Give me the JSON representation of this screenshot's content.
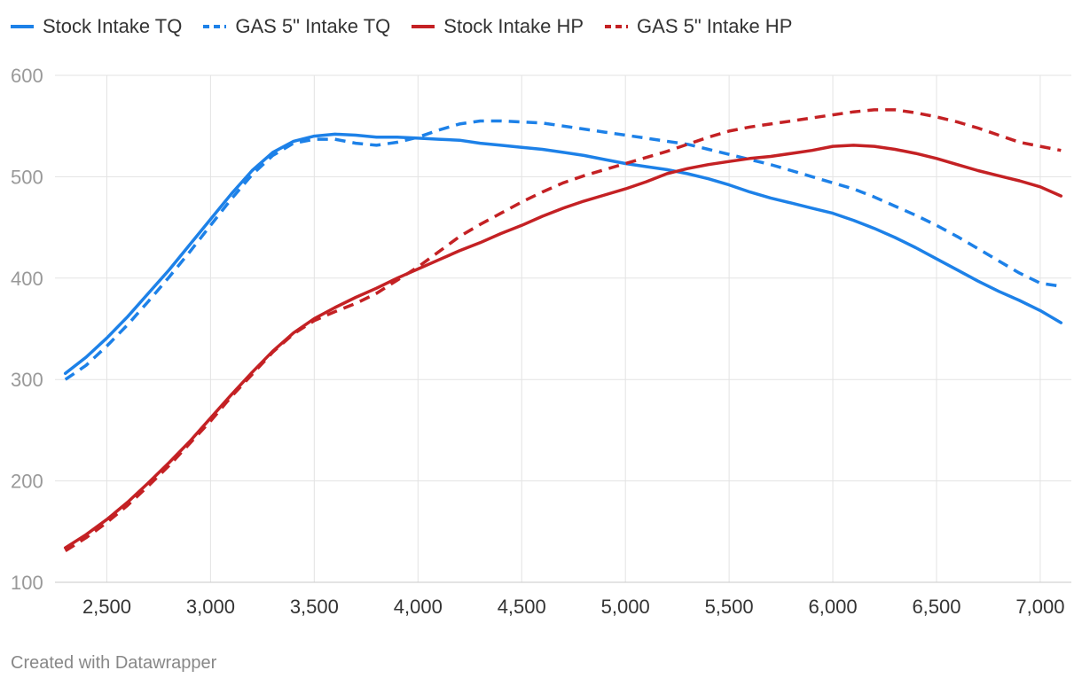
{
  "chart_data": {
    "type": "line",
    "title": "",
    "xlabel": "",
    "ylabel": "",
    "xlim": [
      2250,
      7150
    ],
    "ylim": [
      100,
      600
    ],
    "x_ticks": [
      2500,
      3000,
      3500,
      4000,
      4500,
      5000,
      5500,
      6000,
      6500,
      7000
    ],
    "y_ticks": [
      100,
      200,
      300,
      400,
      500,
      600
    ],
    "grid": true,
    "legend_position": "top-left",
    "series": [
      {
        "name": "Stock Intake TQ",
        "color": "#1d81e8",
        "dash": false,
        "x": [
          2300,
          2400,
          2500,
          2600,
          2700,
          2800,
          2900,
          3000,
          3100,
          3200,
          3300,
          3400,
          3500,
          3600,
          3700,
          3800,
          3900,
          4000,
          4100,
          4200,
          4300,
          4400,
          4500,
          4600,
          4700,
          4800,
          4900,
          5000,
          5100,
          5200,
          5300,
          5400,
          5500,
          5600,
          5700,
          5800,
          5900,
          6000,
          6100,
          6200,
          6300,
          6400,
          6500,
          6600,
          6700,
          6800,
          6900,
          7000,
          7100
        ],
        "y": [
          306,
          322,
          341,
          362,
          385,
          408,
          433,
          458,
          483,
          506,
          524,
          535,
          540,
          542,
          541,
          539,
          539,
          538,
          537,
          536,
          533,
          531,
          529,
          527,
          524,
          521,
          517,
          513,
          510,
          507,
          503,
          498,
          492,
          485,
          479,
          474,
          469,
          464,
          457,
          449,
          440,
          430,
          419,
          408,
          397,
          387,
          378,
          368,
          356
        ]
      },
      {
        "name": "GAS 5\" Intake TQ",
        "color": "#1d81e8",
        "dash": true,
        "x": [
          2300,
          2400,
          2500,
          2600,
          2700,
          2800,
          2900,
          3000,
          3100,
          3200,
          3300,
          3400,
          3500,
          3600,
          3700,
          3800,
          3900,
          4000,
          4100,
          4200,
          4300,
          4400,
          4500,
          4600,
          4700,
          4800,
          4900,
          5000,
          5100,
          5200,
          5300,
          5400,
          5500,
          5600,
          5700,
          5800,
          5900,
          6000,
          6100,
          6200,
          6300,
          6400,
          6500,
          6600,
          6700,
          6800,
          6900,
          7000,
          7100
        ],
        "y": [
          300,
          314,
          333,
          354,
          377,
          401,
          426,
          452,
          478,
          502,
          521,
          533,
          537,
          537,
          533,
          531,
          534,
          539,
          546,
          552,
          555,
          555,
          554,
          553,
          550,
          547,
          544,
          541,
          538,
          535,
          532,
          527,
          522,
          517,
          512,
          506,
          500,
          494,
          488,
          480,
          471,
          462,
          452,
          441,
          429,
          417,
          405,
          395,
          392
        ]
      },
      {
        "name": "Stock Intake HP",
        "color": "#c42124",
        "dash": false,
        "x": [
          2300,
          2400,
          2500,
          2600,
          2700,
          2800,
          2900,
          3000,
          3100,
          3200,
          3300,
          3400,
          3500,
          3600,
          3700,
          3800,
          3900,
          4000,
          4100,
          4200,
          4300,
          4400,
          4500,
          4600,
          4700,
          4800,
          4900,
          5000,
          5100,
          5200,
          5300,
          5400,
          5500,
          5600,
          5700,
          5800,
          5900,
          6000,
          6100,
          6200,
          6300,
          6400,
          6500,
          6600,
          6700,
          6800,
          6900,
          7000,
          7100
        ],
        "y": [
          134,
          147,
          162,
          179,
          198,
          218,
          239,
          262,
          285,
          307,
          328,
          346,
          360,
          371,
          381,
          390,
          400,
          409,
          418,
          427,
          435,
          444,
          452,
          461,
          469,
          476,
          482,
          488,
          495,
          503,
          508,
          512,
          515,
          518,
          520,
          523,
          526,
          530,
          531,
          530,
          527,
          523,
          518,
          512,
          506,
          501,
          496,
          490,
          481
        ]
      },
      {
        "name": "GAS 5\" Intake HP",
        "color": "#c42124",
        "dash": true,
        "x": [
          2300,
          2400,
          2500,
          2600,
          2700,
          2800,
          2900,
          3000,
          3100,
          3200,
          3300,
          3400,
          3500,
          3600,
          3700,
          3800,
          3900,
          4000,
          4100,
          4200,
          4300,
          4400,
          4500,
          4600,
          4700,
          4800,
          4900,
          5000,
          5100,
          5200,
          5300,
          5400,
          5500,
          5600,
          5700,
          5800,
          5900,
          6000,
          6100,
          6200,
          6300,
          6400,
          6500,
          6600,
          6700,
          6800,
          6900,
          7000,
          7100
        ],
        "y": [
          131,
          144,
          159,
          176,
          195,
          215,
          237,
          259,
          283,
          305,
          327,
          345,
          358,
          367,
          375,
          385,
          398,
          411,
          426,
          441,
          453,
          464,
          475,
          485,
          494,
          501,
          507,
          513,
          519,
          525,
          532,
          539,
          545,
          549,
          552,
          555,
          558,
          561,
          564,
          566,
          566,
          563,
          559,
          554,
          548,
          541,
          534,
          530,
          526
        ]
      }
    ]
  },
  "footer": {
    "credit": "Created with Datawrapper"
  }
}
